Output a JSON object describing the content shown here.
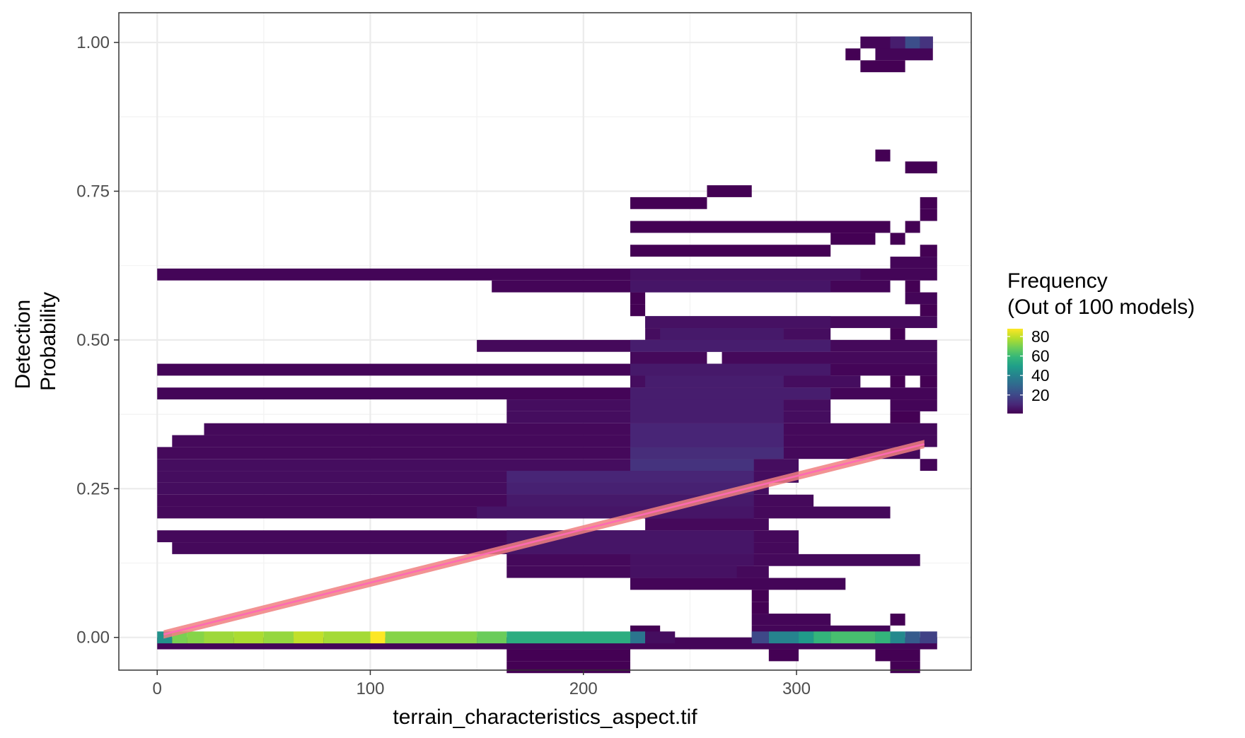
{
  "chart_data": {
    "type": "heatmap",
    "title": "",
    "xlabel": "terrain_characteristics_aspect.tif",
    "ylabel_lines": [
      "Detection",
      "Probability"
    ],
    "xlim": [
      -18,
      382
    ],
    "ylim": [
      -0.055,
      1.05
    ],
    "x_ticks": [
      0,
      100,
      200,
      300
    ],
    "x_tick_labels": [
      "0",
      "100",
      "200",
      "300"
    ],
    "y_ticks": [
      0,
      0.25,
      0.5,
      0.75,
      1.0
    ],
    "y_tick_labels": [
      "0.00",
      "0.25",
      "0.50",
      "0.75",
      "1.00"
    ],
    "grid": true,
    "bin_width_x": 7.2,
    "bin_height_y": 0.02,
    "legend": {
      "title_lines": [
        "Frequency",
        "(Out of 100 models)"
      ],
      "position": "right",
      "range": [
        1,
        88
      ],
      "ticks": [
        20,
        40,
        60,
        80
      ],
      "tick_labels": [
        "20",
        "40",
        "60",
        "80"
      ],
      "colors": [
        "#440154",
        "#482878",
        "#3e4989",
        "#31688e",
        "#26828e",
        "#1f9e89",
        "#35b779",
        "#6ece58",
        "#b5de2b",
        "#fde725"
      ]
    },
    "tiles": [
      {
        "y": 1.0,
        "x0": 330,
        "x1": 364,
        "v": 2,
        "hi": [
          [
            344,
            351,
            8
          ],
          [
            351,
            358,
            22
          ],
          [
            358,
            364,
            14
          ]
        ]
      },
      {
        "y": 0.98,
        "x0": 323,
        "x1": 330,
        "v": 1
      },
      {
        "y": 0.98,
        "x0": 337,
        "x1": 364,
        "v": 2
      },
      {
        "y": 0.96,
        "x0": 330,
        "x1": 351,
        "v": 1
      },
      {
        "y": 0.81,
        "x0": 337,
        "x1": 344,
        "v": 1
      },
      {
        "y": 0.79,
        "x0": 351,
        "x1": 366,
        "v": 1
      },
      {
        "y": 0.75,
        "x0": 258,
        "x1": 279,
        "v": 1
      },
      {
        "y": 0.73,
        "x0": 222,
        "x1": 258,
        "v": 1
      },
      {
        "y": 0.73,
        "x0": 358,
        "x1": 366,
        "v": 1
      },
      {
        "y": 0.71,
        "x0": 358,
        "x1": 366,
        "v": 1
      },
      {
        "y": 0.69,
        "x0": 222,
        "x1": 344,
        "v": 1
      },
      {
        "y": 0.69,
        "x0": 351,
        "x1": 358,
        "v": 1
      },
      {
        "y": 0.67,
        "x0": 316,
        "x1": 337,
        "v": 1
      },
      {
        "y": 0.67,
        "x0": 344,
        "x1": 351,
        "v": 1
      },
      {
        "y": 0.65,
        "x0": 222,
        "x1": 316,
        "v": 1
      },
      {
        "y": 0.65,
        "x0": 358,
        "x1": 366,
        "v": 1
      },
      {
        "y": 0.63,
        "x0": 344,
        "x1": 366,
        "v": 2
      },
      {
        "y": 0.61,
        "x0": 0,
        "x1": 366,
        "v": 2,
        "hi": [
          [
            222,
            330,
            5
          ]
        ]
      },
      {
        "y": 0.59,
        "x0": 157,
        "x1": 344,
        "v": 2,
        "hi": [
          [
            222,
            316,
            6
          ]
        ]
      },
      {
        "y": 0.59,
        "x0": 351,
        "x1": 358,
        "v": 1
      },
      {
        "y": 0.57,
        "x0": 222,
        "x1": 229,
        "v": 1
      },
      {
        "y": 0.57,
        "x0": 351,
        "x1": 366,
        "v": 2
      },
      {
        "y": 0.55,
        "x0": 222,
        "x1": 229,
        "v": 1
      },
      {
        "y": 0.55,
        "x0": 358,
        "x1": 366,
        "v": 1
      },
      {
        "y": 0.53,
        "x0": 229,
        "x1": 366,
        "v": 3,
        "hi": [
          [
            229,
            316,
            5
          ]
        ]
      },
      {
        "y": 0.51,
        "x0": 229,
        "x1": 316,
        "v": 4,
        "hi": [
          [
            236,
            294,
            7
          ]
        ]
      },
      {
        "y": 0.51,
        "x0": 344,
        "x1": 351,
        "v": 1
      },
      {
        "y": 0.49,
        "x0": 150,
        "x1": 366,
        "v": 3,
        "hi": [
          [
            222,
            316,
            8
          ]
        ]
      },
      {
        "y": 0.47,
        "x0": 222,
        "x1": 258,
        "v": 3
      },
      {
        "y": 0.47,
        "x0": 265,
        "x1": 366,
        "v": 3
      },
      {
        "y": 0.45,
        "x0": 0,
        "x1": 366,
        "v": 2,
        "hi": [
          [
            222,
            316,
            7
          ]
        ]
      },
      {
        "y": 0.43,
        "x0": 222,
        "x1": 330,
        "v": 4,
        "hi": [
          [
            229,
            294,
            8
          ]
        ]
      },
      {
        "y": 0.43,
        "x0": 344,
        "x1": 351,
        "v": 1
      },
      {
        "y": 0.43,
        "x0": 358,
        "x1": 366,
        "v": 1
      },
      {
        "y": 0.41,
        "x0": 0,
        "x1": 366,
        "v": 2,
        "hi": [
          [
            222,
            316,
            8
          ]
        ]
      },
      {
        "y": 0.39,
        "x0": 164,
        "x1": 316,
        "v": 4,
        "hi": [
          [
            222,
            294,
            8
          ]
        ]
      },
      {
        "y": 0.39,
        "x0": 344,
        "x1": 366,
        "v": 2
      },
      {
        "y": 0.37,
        "x0": 164,
        "x1": 316,
        "v": 4,
        "hi": [
          [
            222,
            294,
            8
          ]
        ]
      },
      {
        "y": 0.37,
        "x0": 344,
        "x1": 358,
        "v": 1
      },
      {
        "y": 0.35,
        "x0": 22,
        "x1": 366,
        "v": 3,
        "hi": [
          [
            222,
            294,
            10
          ]
        ]
      },
      {
        "y": 0.33,
        "x0": 7,
        "x1": 366,
        "v": 3,
        "hi": [
          [
            222,
            294,
            10
          ]
        ]
      },
      {
        "y": 0.31,
        "x0": 0,
        "x1": 358,
        "v": 3,
        "hi": [
          [
            222,
            294,
            12
          ]
        ]
      },
      {
        "y": 0.29,
        "x0": 0,
        "x1": 301,
        "v": 4,
        "hi": [
          [
            222,
            280,
            14
          ]
        ]
      },
      {
        "y": 0.29,
        "x0": 358,
        "x1": 366,
        "v": 2
      },
      {
        "y": 0.27,
        "x0": 0,
        "x1": 301,
        "v": 4,
        "hi": [
          [
            164,
            280,
            10
          ]
        ]
      },
      {
        "y": 0.25,
        "x0": 0,
        "x1": 287,
        "v": 4,
        "hi": [
          [
            164,
            280,
            9
          ]
        ]
      },
      {
        "y": 0.23,
        "x0": 0,
        "x1": 308,
        "v": 3,
        "hi": [
          [
            164,
            280,
            7
          ]
        ]
      },
      {
        "y": 0.21,
        "x0": 0,
        "x1": 344,
        "v": 3,
        "hi": [
          [
            150,
            280,
            6
          ]
        ]
      },
      {
        "y": 0.19,
        "x0": 229,
        "x1": 287,
        "v": 3
      },
      {
        "y": 0.17,
        "x0": 0,
        "x1": 301,
        "v": 3,
        "hi": [
          [
            164,
            280,
            6
          ]
        ]
      },
      {
        "y": 0.15,
        "x0": 7,
        "x1": 301,
        "v": 3,
        "hi": [
          [
            164,
            280,
            6
          ]
        ]
      },
      {
        "y": 0.13,
        "x0": 164,
        "x1": 358,
        "v": 3,
        "hi": [
          [
            222,
            280,
            5
          ]
        ]
      },
      {
        "y": 0.11,
        "x0": 164,
        "x1": 287,
        "v": 3,
        "hi": [
          [
            222,
            272,
            5
          ]
        ]
      },
      {
        "y": 0.09,
        "x0": 222,
        "x1": 323,
        "v": 2
      },
      {
        "y": 0.07,
        "x0": 279,
        "x1": 287,
        "v": 1
      },
      {
        "y": 0.05,
        "x0": 279,
        "x1": 287,
        "v": 1
      },
      {
        "y": 0.03,
        "x0": 279,
        "x1": 316,
        "v": 2
      },
      {
        "y": 0.03,
        "x0": 344,
        "x1": 351,
        "v": 1
      },
      {
        "y": 0.01,
        "x0": 222,
        "x1": 236,
        "v": 1
      },
      {
        "y": 0.01,
        "x0": 279,
        "x1": 344,
        "v": 2
      },
      {
        "y": -0.01,
        "x0": 0,
        "x1": 366,
        "v": 2
      },
      {
        "y": -0.03,
        "x0": 164,
        "x1": 222,
        "v": 1
      },
      {
        "y": -0.03,
        "x0": 287,
        "x1": 301,
        "v": 1
      },
      {
        "y": -0.03,
        "x0": 337,
        "x1": 358,
        "v": 1
      },
      {
        "y": -0.05,
        "x0": 164,
        "x1": 222,
        "v": 1
      },
      {
        "y": -0.05,
        "x0": 344,
        "x1": 358,
        "v": 1
      }
    ],
    "zero_row": {
      "y": 0.0,
      "bins": [
        {
          "x0": 0,
          "x1": 7,
          "v": 45
        },
        {
          "x0": 7,
          "x1": 14,
          "v": 70
        },
        {
          "x0": 14,
          "x1": 22,
          "v": 72
        },
        {
          "x0": 22,
          "x1": 36,
          "v": 75
        },
        {
          "x0": 36,
          "x1": 50,
          "v": 77
        },
        {
          "x0": 50,
          "x1": 64,
          "v": 74
        },
        {
          "x0": 64,
          "x1": 78,
          "v": 80
        },
        {
          "x0": 78,
          "x1": 100,
          "v": 76
        },
        {
          "x0": 100,
          "x1": 107,
          "v": 88
        },
        {
          "x0": 107,
          "x1": 150,
          "v": 72
        },
        {
          "x0": 150,
          "x1": 164,
          "v": 68
        },
        {
          "x0": 164,
          "x1": 222,
          "v": 55
        },
        {
          "x0": 222,
          "x1": 229,
          "v": 35
        },
        {
          "x0": 229,
          "x1": 243,
          "v": 4
        },
        {
          "x0": 279,
          "x1": 287,
          "v": 20
        },
        {
          "x0": 287,
          "x1": 301,
          "v": 40
        },
        {
          "x0": 301,
          "x1": 308,
          "v": 48
        },
        {
          "x0": 308,
          "x1": 316,
          "v": 58
        },
        {
          "x0": 316,
          "x1": 337,
          "v": 62
        },
        {
          "x0": 337,
          "x1": 344,
          "v": 58
        },
        {
          "x0": 344,
          "x1": 351,
          "v": 42
        },
        {
          "x0": 351,
          "x1": 358,
          "v": 26
        },
        {
          "x0": 358,
          "x1": 366,
          "v": 18
        }
      ]
    },
    "trend": {
      "type": "linear",
      "x": [
        3,
        360
      ],
      "y": [
        0.005,
        0.325
      ],
      "band_upper": [
        0.012,
        0.332
      ],
      "band_lower": [
        -0.002,
        0.318
      ],
      "band_color": "#f08080",
      "line_color": "#ff69b4"
    }
  }
}
